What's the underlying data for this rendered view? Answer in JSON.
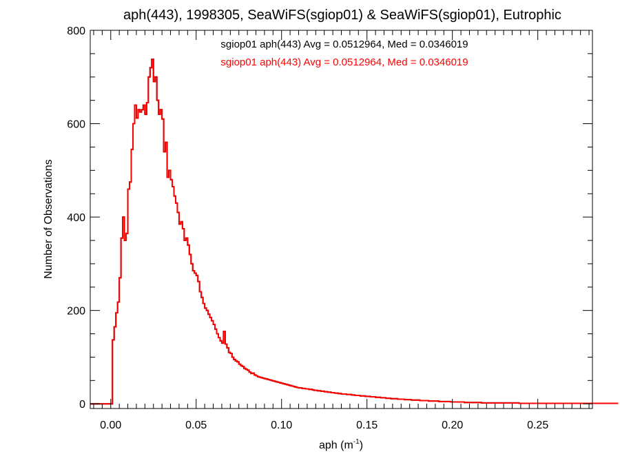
{
  "chart_data": {
    "type": "histogram",
    "title": "aph(443), 1998305, SeaWiFS(sgiop01) & SeaWiFS(sgiop01), Eutrophic",
    "xlabel": "aph (m",
    "xlabel_sup": "-1",
    "xlabel_close": ")",
    "ylabel": "Number of Observations",
    "xlim": [
      -0.012,
      0.282
    ],
    "ylim": [
      -10,
      800
    ],
    "grid": false,
    "x_ticks": [
      {
        "value": 0.0,
        "label": "0.00"
      },
      {
        "value": 0.05,
        "label": "0.05"
      },
      {
        "value": 0.1,
        "label": "0.10"
      },
      {
        "value": 0.15,
        "label": "0.15"
      },
      {
        "value": 0.2,
        "label": "0.20"
      },
      {
        "value": 0.25,
        "label": "0.25"
      }
    ],
    "y_ticks": [
      {
        "value": 0,
        "label": "0"
      },
      {
        "value": 200,
        "label": "200"
      },
      {
        "value": 400,
        "label": "400"
      },
      {
        "value": 600,
        "label": "600"
      },
      {
        "value": 800,
        "label": "800"
      }
    ],
    "colors": {
      "series_primary": "#000000",
      "series_secondary": "#ff0000",
      "axes": "#000000"
    },
    "series": [
      {
        "name": "sgiop01 aph(443)",
        "color": "#000000",
        "annotation": "sgiop01 aph(443) Avg = 0.0512964, Med = 0.0346019",
        "bin_width": 0.001,
        "x_start": -0.012,
        "counts": [
          0,
          0,
          0,
          0,
          0,
          0,
          0,
          0,
          0,
          0,
          0,
          0,
          0,
          137,
          165,
          195,
          218,
          270,
          355,
          400,
          350,
          365,
          460,
          475,
          545,
          600,
          640,
          612,
          630,
          625,
          630,
          640,
          620,
          645,
          700,
          720,
          738,
          690,
          700,
          650,
          620,
          630,
          610,
          540,
          560,
          485,
          500,
          480,
          465,
          445,
          430,
          410,
          385,
          390,
          375,
          350,
          355,
          340,
          320,
          300,
          285,
          280,
          275,
          262,
          240,
          228,
          215,
          205,
          200,
          192,
          185,
          178,
          170,
          160,
          150,
          142,
          135,
          130,
          155,
          128,
          120,
          110,
          108,
          100,
          95,
          92,
          90,
          85,
          82,
          80,
          76,
          74,
          72,
          68,
          65,
          66,
          62,
          60,
          58,
          57,
          56,
          55,
          54,
          53,
          52,
          51,
          50,
          49,
          48,
          47,
          46,
          45,
          44,
          43,
          42,
          41,
          40,
          39,
          38,
          37,
          36,
          35,
          34,
          34,
          33,
          33,
          32,
          32,
          31,
          31,
          30,
          29,
          29,
          28,
          28,
          27,
          27,
          26,
          26,
          25,
          25,
          24,
          24,
          23,
          23,
          22,
          22,
          21,
          21,
          21,
          20,
          20,
          20,
          19,
          19,
          18,
          18,
          18,
          17,
          17,
          17,
          16,
          16,
          16,
          15,
          15,
          15,
          14,
          14,
          14,
          13,
          13,
          13,
          12,
          12,
          12,
          11,
          11,
          11,
          11,
          10,
          10,
          10,
          10,
          9,
          9,
          9,
          9,
          8,
          8,
          8,
          8,
          8,
          7,
          7,
          7,
          7,
          7,
          6,
          6,
          6,
          6,
          6,
          6,
          5,
          5,
          5,
          5,
          5,
          5,
          5,
          4,
          4,
          4,
          4,
          4,
          4,
          4,
          4,
          3,
          3,
          3,
          3,
          3,
          3,
          3,
          3,
          3,
          3,
          2,
          2,
          2,
          2,
          2,
          2,
          2,
          2,
          2,
          2,
          2,
          2,
          2,
          2,
          2,
          2,
          2,
          2,
          2,
          2,
          2,
          2,
          1,
          1,
          1,
          1,
          1,
          1,
          1,
          1,
          1,
          1,
          1,
          1,
          1,
          1,
          1,
          1,
          1,
          1,
          1,
          1,
          1,
          1,
          1,
          1,
          1,
          1,
          1,
          1,
          1,
          1,
          1,
          1,
          1,
          1,
          1,
          1,
          1,
          1,
          1,
          1,
          1,
          1,
          1,
          1,
          1,
          1,
          1,
          1,
          1,
          1,
          1,
          1,
          1,
          1,
          1,
          1,
          1,
          1
        ]
      },
      {
        "name": "sgiop01 aph(443)",
        "color": "#ff0000",
        "annotation": "sgiop01 aph(443) Avg = 0.0512964, Med = 0.0346019",
        "bin_width": 0.001,
        "x_start": -0.012,
        "counts": [
          0,
          0,
          0,
          0,
          0,
          0,
          0,
          0,
          0,
          0,
          0,
          0,
          0,
          137,
          165,
          195,
          218,
          270,
          355,
          400,
          350,
          365,
          460,
          475,
          545,
          600,
          640,
          612,
          630,
          625,
          630,
          640,
          620,
          645,
          700,
          720,
          738,
          690,
          700,
          650,
          620,
          630,
          610,
          540,
          560,
          485,
          500,
          480,
          465,
          445,
          430,
          410,
          385,
          390,
          375,
          350,
          355,
          340,
          320,
          300,
          285,
          280,
          275,
          262,
          240,
          228,
          215,
          205,
          200,
          192,
          185,
          178,
          170,
          160,
          150,
          142,
          135,
          130,
          155,
          128,
          120,
          110,
          108,
          100,
          95,
          92,
          90,
          85,
          82,
          80,
          76,
          74,
          72,
          68,
          65,
          66,
          62,
          60,
          58,
          57,
          56,
          55,
          54,
          53,
          52,
          51,
          50,
          49,
          48,
          47,
          46,
          45,
          44,
          43,
          42,
          41,
          40,
          39,
          38,
          37,
          36,
          35,
          34,
          34,
          33,
          33,
          32,
          32,
          31,
          31,
          30,
          29,
          29,
          28,
          28,
          27,
          27,
          26,
          26,
          25,
          25,
          24,
          24,
          23,
          23,
          22,
          22,
          21,
          21,
          21,
          20,
          20,
          20,
          19,
          19,
          18,
          18,
          18,
          17,
          17,
          17,
          16,
          16,
          16,
          15,
          15,
          15,
          14,
          14,
          14,
          13,
          13,
          13,
          12,
          12,
          12,
          11,
          11,
          11,
          11,
          10,
          10,
          10,
          10,
          9,
          9,
          9,
          9,
          8,
          8,
          8,
          8,
          8,
          7,
          7,
          7,
          7,
          7,
          6,
          6,
          6,
          6,
          6,
          6,
          5,
          5,
          5,
          5,
          5,
          5,
          5,
          4,
          4,
          4,
          4,
          4,
          4,
          4,
          4,
          3,
          3,
          3,
          3,
          3,
          3,
          3,
          3,
          3,
          3,
          2,
          2,
          2,
          2,
          2,
          2,
          2,
          2,
          2,
          2,
          2,
          2,
          2,
          2,
          2,
          2,
          2,
          2,
          2,
          2,
          2,
          2,
          1,
          1,
          1,
          1,
          1,
          1,
          1,
          1,
          1,
          1,
          1,
          1,
          1,
          1,
          1,
          1,
          1,
          1,
          1,
          1,
          1,
          1,
          1,
          1,
          1,
          1,
          1,
          1,
          1,
          1,
          1,
          1,
          1,
          1,
          1,
          1,
          1,
          1,
          1,
          1,
          1,
          1,
          1,
          1,
          1,
          1,
          1,
          1,
          1,
          1,
          1,
          1,
          1,
          1,
          1,
          1,
          1,
          1
        ]
      }
    ]
  }
}
